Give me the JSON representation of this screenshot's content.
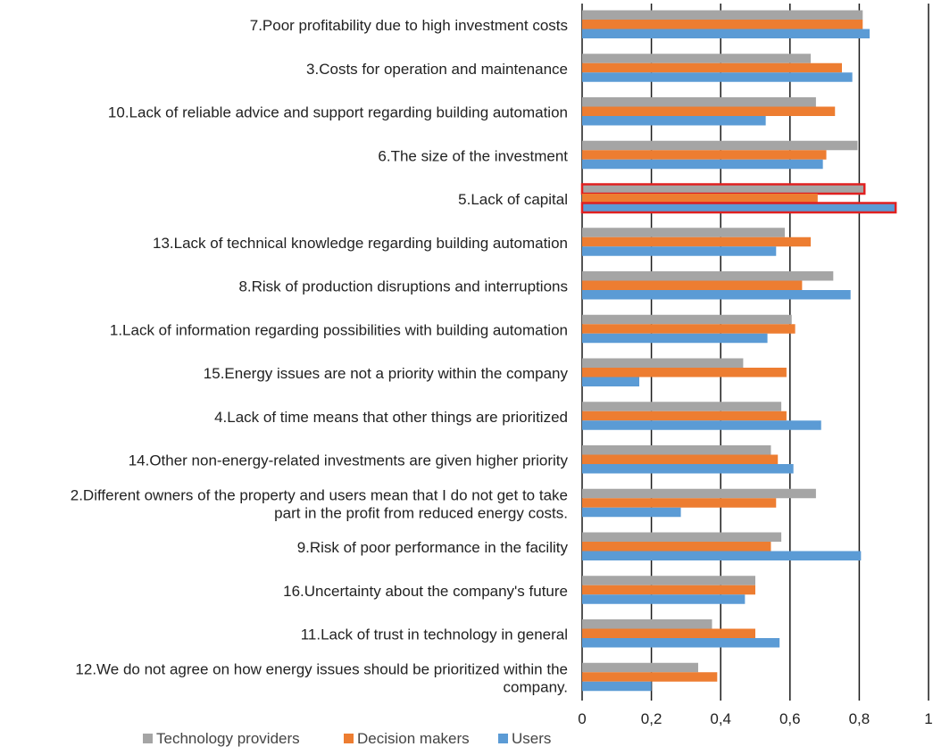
{
  "chart_data": {
    "type": "bar",
    "orientation": "horizontal",
    "title": "",
    "xlabel": "",
    "ylabel": "",
    "xlim": [
      0,
      1
    ],
    "x_ticks": [
      "0",
      "0,2",
      "0,4",
      "0,6",
      "0,8",
      "1"
    ],
    "x_tick_values": [
      0,
      0.2,
      0.4,
      0.6,
      0.8,
      1.0
    ],
    "grid": "vertical",
    "legend_position": "bottom",
    "categories": [
      [
        "7.Poor profitability due to high investment costs"
      ],
      [
        "3.Costs for operation and maintenance"
      ],
      [
        "10.Lack of reliable advice and support regarding building automation"
      ],
      [
        "6.The size of the investment"
      ],
      [
        "5.Lack of capital"
      ],
      [
        "13.Lack of technical knowledge regarding building automation"
      ],
      [
        "8.Risk of production disruptions and interruptions"
      ],
      [
        "1.Lack of information regarding possibilities with building automation"
      ],
      [
        "15.Energy issues are not a priority within the company"
      ],
      [
        "4.Lack of time means that other things are prioritized"
      ],
      [
        "14.Other non-energy-related investments are given higher priority"
      ],
      [
        "2.Different owners of the property and users mean that I do not get to take",
        "part in the profit from reduced energy costs."
      ],
      [
        "9.Risk of poor performance in the facility"
      ],
      [
        "16.Uncertainty about the company's future"
      ],
      [
        "11.Lack of trust in technology in general"
      ],
      [
        "12.We do not agree on how energy issues should be prioritized within the",
        "company."
      ]
    ],
    "series": [
      {
        "name": "Technology providers",
        "color": "#a5a5a5",
        "values": [
          0.81,
          0.66,
          0.675,
          0.795,
          0.815,
          0.585,
          0.725,
          0.605,
          0.465,
          0.575,
          0.545,
          0.675,
          0.575,
          0.5,
          0.375,
          0.335
        ]
      },
      {
        "name": "Decision makers",
        "color": "#ed7d31",
        "values": [
          0.81,
          0.75,
          0.73,
          0.705,
          0.68,
          0.66,
          0.635,
          0.615,
          0.59,
          0.59,
          0.565,
          0.56,
          0.545,
          0.5,
          0.5,
          0.39
        ]
      },
      {
        "name": "Users",
        "color": "#5b9bd5",
        "values": [
          0.83,
          0.78,
          0.53,
          0.695,
          0.905,
          0.56,
          0.775,
          0.535,
          0.165,
          0.69,
          0.61,
          0.285,
          0.805,
          0.47,
          0.57,
          0.2
        ]
      }
    ],
    "highlight": {
      "category_index": 4,
      "series": [
        "Technology providers",
        "Users"
      ],
      "color": "#e02020"
    }
  }
}
